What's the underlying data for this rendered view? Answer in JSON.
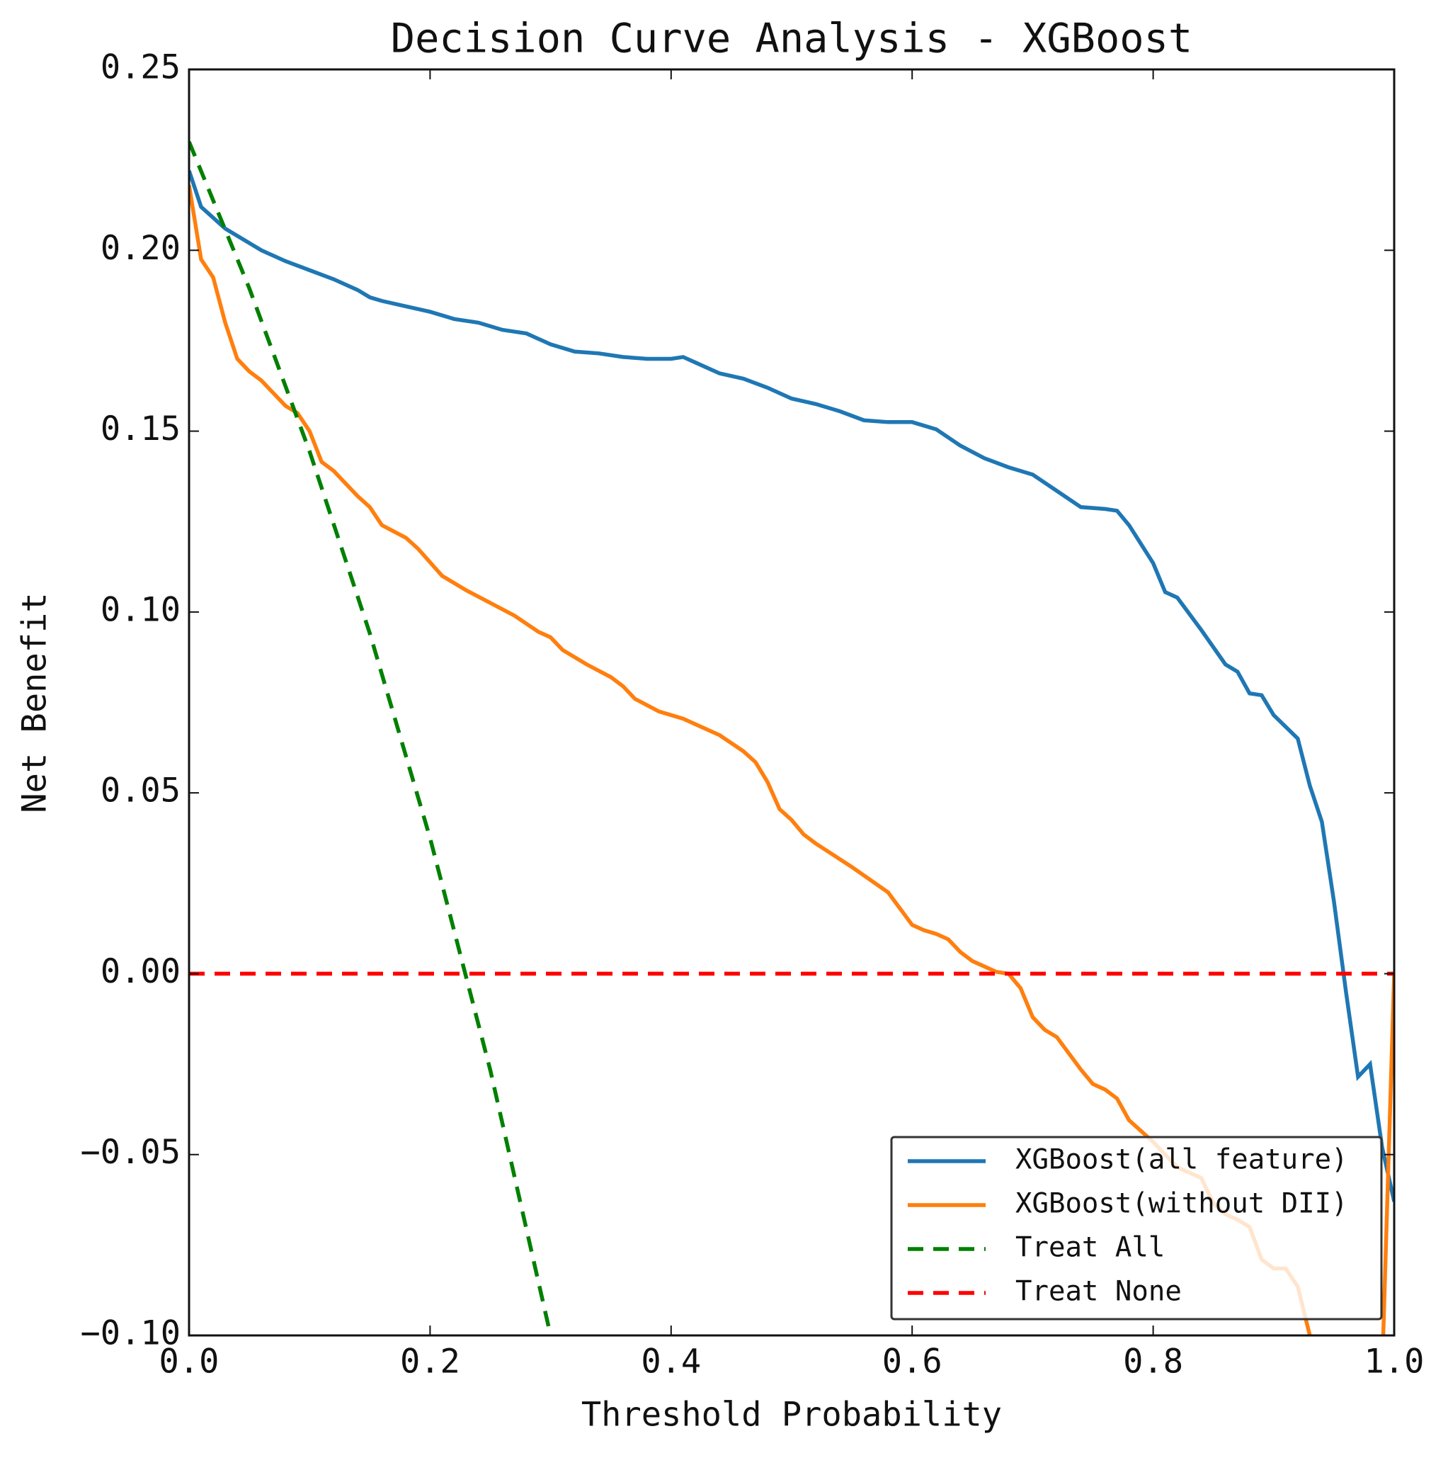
{
  "chart_data": {
    "type": "line",
    "title": "Decision Curve Analysis - XGBoost",
    "x_label": "Threshold Probability",
    "y_label": "Net Benefit",
    "xlim": [
      0.0,
      1.0
    ],
    "ylim": [
      -0.1,
      0.25
    ],
    "xticks": [
      {
        "value": 0,
        "label": "0.0"
      },
      0.2,
      0.4,
      0.6,
      0.8,
      {
        "value": 1,
        "label": "1.0"
      }
    ],
    "yticks": [
      {
        "value": -0.1,
        "label": "−0.10"
      },
      {
        "value": -0.05,
        "label": "−0.05"
      },
      {
        "value": 0,
        "label": "0.00"
      },
      0.05,
      {
        "value": 0.1,
        "label": "0.10"
      },
      0.15,
      {
        "value": 0.2,
        "label": "0.20"
      },
      0.25
    ],
    "grid": false,
    "legend": "lower right",
    "series": [
      {
        "name": "XGBoost(all feature)",
        "color": "#1f77b4",
        "dash": false,
        "x": [
          0,
          0.01,
          0.02,
          0.03,
          0.04,
          0.06,
          0.08,
          0.1,
          0.12,
          0.14,
          0.15,
          0.16,
          0.18,
          0.2,
          0.22,
          0.24,
          0.26,
          0.28,
          0.3,
          0.32,
          0.34,
          0.36,
          0.38,
          0.4,
          0.41,
          0.42,
          0.44,
          0.46,
          0.48,
          0.5,
          0.52,
          0.54,
          0.56,
          0.58,
          0.6,
          0.62,
          0.64,
          0.66,
          0.68,
          0.7,
          0.72,
          0.74,
          0.76,
          0.77,
          0.78,
          0.8,
          0.81,
          0.82,
          0.84,
          0.86,
          0.87,
          0.88,
          0.89,
          0.9,
          0.92,
          0.93,
          0.94,
          0.95,
          0.96,
          0.97,
          0.98,
          0.99,
          1.0
        ],
        "values": [
          0.222,
          0.212,
          0.209,
          0.206,
          0.204,
          0.2,
          0.197,
          0.1945,
          0.192,
          0.189,
          0.187,
          0.186,
          0.1845,
          0.183,
          0.181,
          0.18,
          0.178,
          0.177,
          0.174,
          0.172,
          0.1715,
          0.1705,
          0.17,
          0.17,
          0.1705,
          0.169,
          0.166,
          0.1645,
          0.162,
          0.159,
          0.1575,
          0.1555,
          0.153,
          0.1525,
          0.1525,
          0.1505,
          0.146,
          0.1425,
          0.14,
          0.138,
          0.1335,
          0.129,
          0.1285,
          0.128,
          0.124,
          0.1135,
          0.1055,
          0.104,
          0.095,
          0.0855,
          0.0835,
          0.0775,
          0.077,
          0.0715,
          0.065,
          0.052,
          0.042,
          0.02,
          -0.005,
          -0.0285,
          -0.025,
          -0.048,
          -0.063
        ]
      },
      {
        "name": "XGBoost(without DII)",
        "color": "#ff7f0e",
        "dash": false,
        "x": [
          0,
          0.01,
          0.02,
          0.03,
          0.04,
          0.05,
          0.06,
          0.08,
          0.09,
          0.1,
          0.11,
          0.12,
          0.14,
          0.15,
          0.16,
          0.18,
          0.19,
          0.21,
          0.23,
          0.25,
          0.27,
          0.29,
          0.3,
          0.31,
          0.33,
          0.35,
          0.36,
          0.37,
          0.39,
          0.41,
          0.44,
          0.46,
          0.47,
          0.48,
          0.49,
          0.5,
          0.51,
          0.52,
          0.55,
          0.58,
          0.59,
          0.6,
          0.61,
          0.62,
          0.63,
          0.64,
          0.65,
          0.67,
          0.68,
          0.69,
          0.7,
          0.71,
          0.72,
          0.74,
          0.75,
          0.76,
          0.77,
          0.78,
          0.8,
          0.82,
          0.84,
          0.85,
          0.86,
          0.87,
          0.88,
          0.89,
          0.9,
          0.91,
          0.92,
          0.93,
          0.94,
          0.99,
          1.0
        ],
        "values": [
          0.218,
          0.1975,
          0.1925,
          0.18,
          0.17,
          0.1665,
          0.164,
          0.157,
          0.155,
          0.15,
          0.1415,
          0.139,
          0.132,
          0.129,
          0.124,
          0.1205,
          0.1175,
          0.11,
          0.106,
          0.1025,
          0.099,
          0.0945,
          0.093,
          0.0895,
          0.0855,
          0.082,
          0.0795,
          0.076,
          0.0725,
          0.0705,
          0.066,
          0.0615,
          0.0585,
          0.053,
          0.0455,
          0.0425,
          0.0385,
          0.036,
          0.0295,
          0.0225,
          0.018,
          0.0135,
          0.012,
          0.011,
          0.0095,
          0.006,
          0.0035,
          0.0005,
          0.0,
          -0.004,
          -0.012,
          -0.0155,
          -0.0175,
          -0.0265,
          -0.0305,
          -0.032,
          -0.0345,
          -0.0405,
          -0.0465,
          -0.0535,
          -0.0565,
          -0.0635,
          -0.0665,
          -0.068,
          -0.07,
          -0.079,
          -0.0815,
          -0.0815,
          -0.0865,
          -0.1,
          -0.11,
          -0.11,
          0.0
        ]
      },
      {
        "name": "Treat All",
        "color": "#008000",
        "dash": true,
        "x": [
          0,
          0.05,
          0.1,
          0.15,
          0.2,
          0.25,
          0.3
        ],
        "values": [
          0.23,
          0.1895,
          0.1444,
          0.0941,
          0.0375,
          -0.0267,
          -0.1
        ]
      },
      {
        "name": "Treat None",
        "color": "#ff0000",
        "dash": true,
        "x": [
          0,
          1.0
        ],
        "values": [
          0,
          0
        ]
      }
    ]
  }
}
